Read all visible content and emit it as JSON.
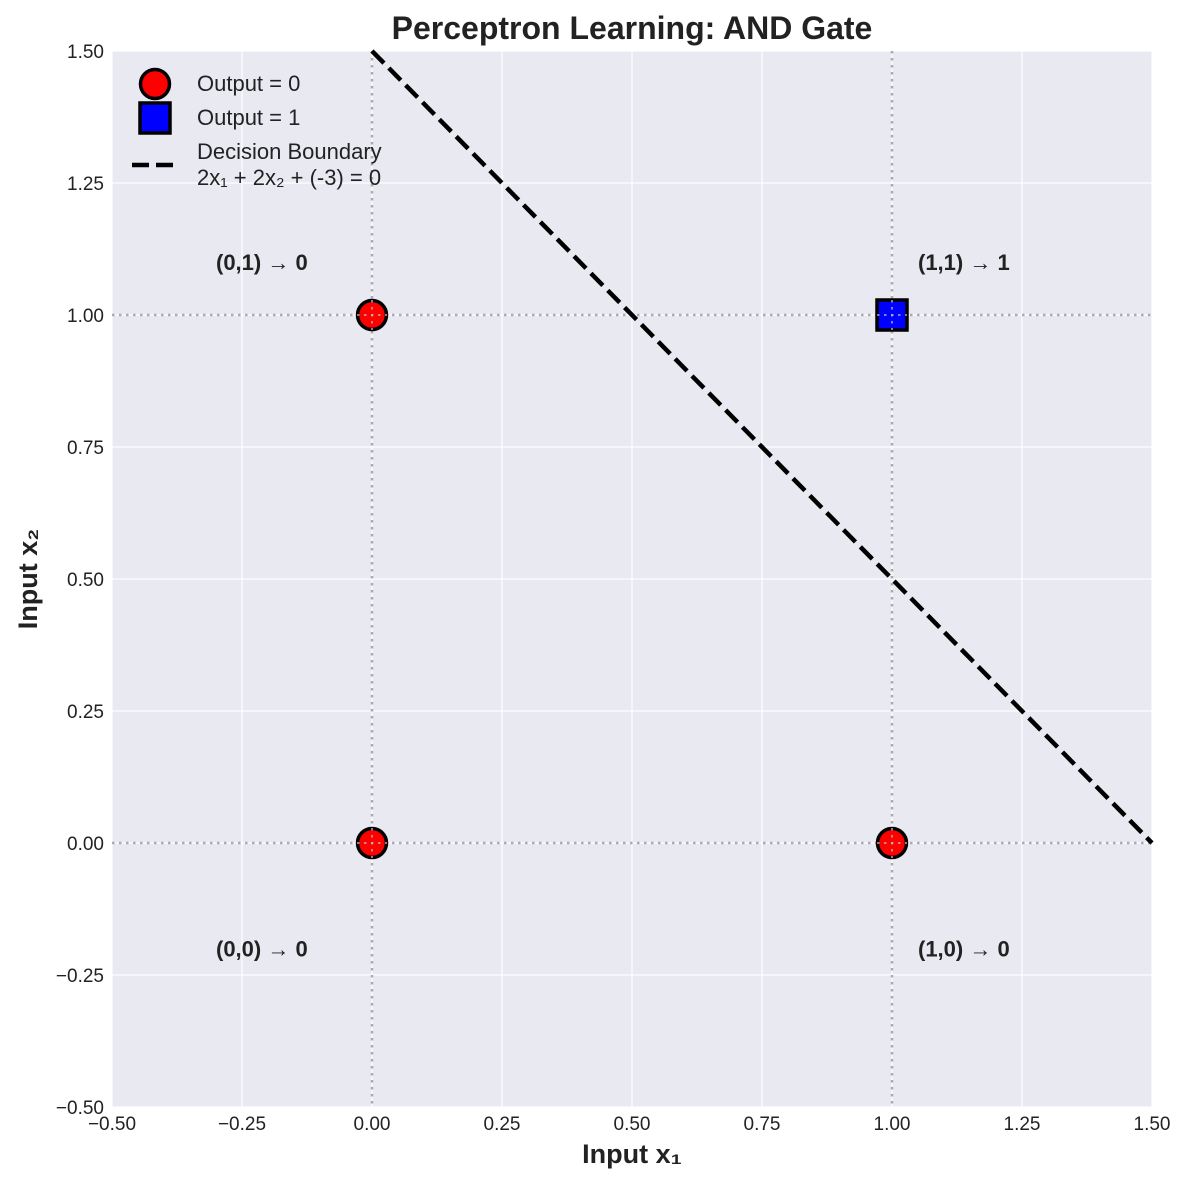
{
  "chart_data": {
    "type": "scatter",
    "title": "Perceptron Learning: AND Gate",
    "xlabel": "Input x₁",
    "ylabel": "Input x₂",
    "xlim": [
      -0.5,
      1.5
    ],
    "ylim": [
      -0.5,
      1.5
    ],
    "xticks": [
      "−0.50",
      "−0.25",
      "0.00",
      "0.25",
      "0.50",
      "0.75",
      "1.00",
      "1.25",
      "1.50"
    ],
    "yticks": [
      "−0.50",
      "−0.25",
      "0.00",
      "0.25",
      "0.50",
      "0.75",
      "1.00",
      "1.25",
      "1.50"
    ],
    "grid": true,
    "legend_position": "top-left",
    "series": [
      {
        "name": "Output = 0",
        "marker": "circle",
        "color": "#ff0000",
        "points": [
          [
            0,
            0
          ],
          [
            0,
            1
          ],
          [
            1,
            0
          ]
        ]
      },
      {
        "name": "Output = 1",
        "marker": "square",
        "color": "#0000ff",
        "points": [
          [
            1,
            1
          ]
        ]
      }
    ],
    "decision_boundary": {
      "name_line1": "Decision Boundary",
      "name_line2": "2x₁ + 2x₂ + (-3) = 0",
      "w1": 2,
      "w2": 2,
      "bias": -3,
      "style": "dashed",
      "color": "#000000"
    },
    "annotations": [
      {
        "text": "(0,0) → 0",
        "x": -0.3,
        "y": -0.2
      },
      {
        "text": "(0,1) → 0",
        "x": -0.3,
        "y": 1.1
      },
      {
        "text": "(1,0) → 0",
        "x": 1.05,
        "y": -0.2
      },
      {
        "text": "(1,1) → 1",
        "x": 1.05,
        "y": 1.1
      }
    ],
    "reference_lines": {
      "x": [
        0,
        1
      ],
      "y": [
        0,
        1
      ]
    }
  }
}
